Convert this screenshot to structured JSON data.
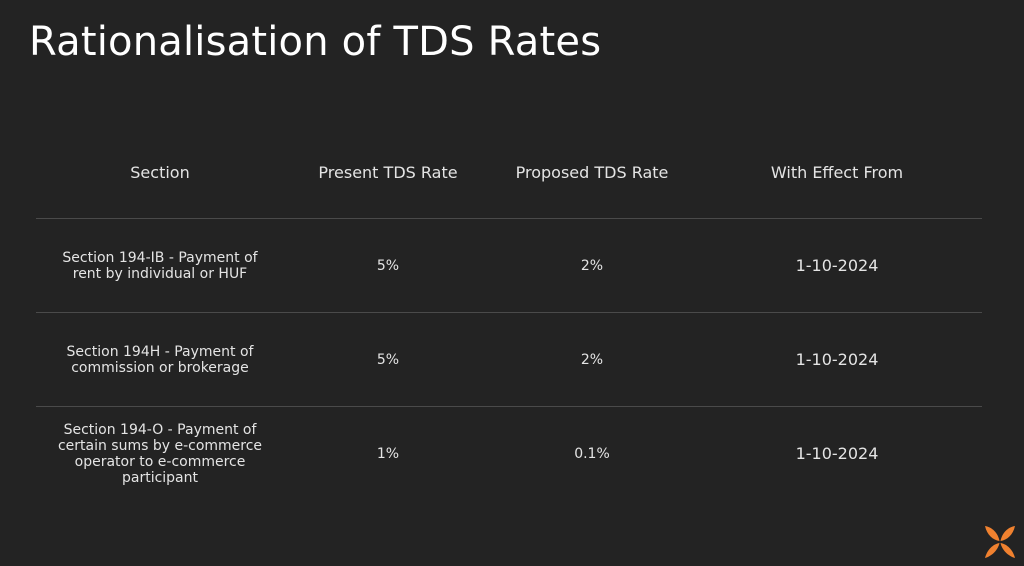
{
  "slide": {
    "title": "Rationalisation of TDS Rates"
  },
  "table": {
    "headers": [
      "Section",
      "Present TDS Rate",
      "Proposed TDS Rate",
      "With Effect From"
    ],
    "rows": [
      {
        "section": "Section 194-IB - Payment of rent by individual or HUF",
        "present_rate": "5%",
        "proposed_rate": "2%",
        "effective_from": "1-10-2024"
      },
      {
        "section": "Section 194H - Payment of commission or brokerage",
        "present_rate": "5%",
        "proposed_rate": "2%",
        "effective_from": "1-10-2024"
      },
      {
        "section": "Section 194-O - Payment of certain sums by e-commerce operator to e-commerce participant",
        "present_rate": "1%",
        "proposed_rate": "0.1%",
        "effective_from": "1-10-2024"
      }
    ]
  },
  "logo": {
    "icon": "orange-butterfly-logo",
    "color": "#f0812f"
  }
}
